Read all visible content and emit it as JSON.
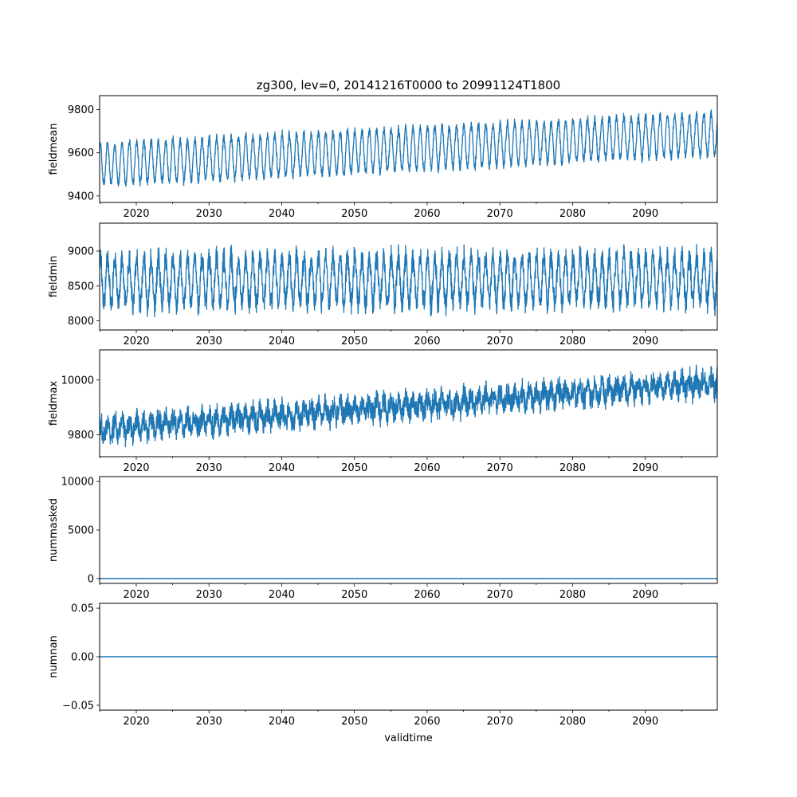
{
  "figure": {
    "title": "zg300, lev=0, 20141216T0000 to 20991124T1800",
    "xlabel": "validtime",
    "line_color": "#1f77b4"
  },
  "chart_data": [
    {
      "type": "line",
      "ylabel": "fieldmean",
      "xlim": [
        2014.96,
        2099.9
      ],
      "ylim": [
        9370,
        9865
      ],
      "x_ticks": [
        "2020",
        "2030",
        "2040",
        "2050",
        "2060",
        "2070",
        "2080",
        "2090"
      ],
      "y_ticks": [
        9400,
        9600,
        9800
      ],
      "series": [
        {
          "x_start": 2014.96,
          "x_end": 2099.9,
          "base_start": 9545,
          "base_end": 9690,
          "seasonal_amplitude": 95,
          "noise": 18,
          "min": 9385,
          "max": 9840
        }
      ]
    },
    {
      "type": "line",
      "ylabel": "fieldmin",
      "xlim": [
        2014.96,
        2099.9
      ],
      "ylim": [
        7870,
        9400
      ],
      "x_ticks": [
        "2020",
        "2030",
        "2040",
        "2050",
        "2060",
        "2070",
        "2080",
        "2090"
      ],
      "y_ticks": [
        8000,
        8500,
        9000
      ],
      "series": [
        {
          "x_start": 2014.96,
          "x_end": 2099.9,
          "base_start": 8560,
          "base_end": 8600,
          "seasonal_amplitude": 330,
          "noise": 140,
          "min": 7950,
          "max": 9330
        }
      ]
    },
    {
      "type": "line",
      "ylabel": "fieldmax",
      "xlim": [
        2014.96,
        2099.9
      ],
      "ylim": [
        9720,
        10110
      ],
      "x_ticks": [
        "2020",
        "2030",
        "2040",
        "2050",
        "2060",
        "2070",
        "2080",
        "2090"
      ],
      "y_ticks": [
        9800,
        10000
      ],
      "series": [
        {
          "x_start": 2014.96,
          "x_end": 2099.9,
          "base_start": 9820,
          "base_end": 9990,
          "seasonal_amplitude": 25,
          "noise": 35,
          "min": 9730,
          "max": 10100
        }
      ]
    },
    {
      "type": "line",
      "ylabel": "nummasked",
      "xlim": [
        2014.96,
        2099.9
      ],
      "ylim": [
        -500,
        10500
      ],
      "x_ticks": [
        "2020",
        "2030",
        "2040",
        "2050",
        "2060",
        "2070",
        "2080",
        "2090"
      ],
      "y_ticks": [
        0,
        5000,
        10000
      ],
      "series": [
        {
          "x_start": 2014.96,
          "x_end": 2099.9,
          "constant": 0
        }
      ]
    },
    {
      "type": "line",
      "ylabel": "numnan",
      "xlim": [
        2014.96,
        2099.9
      ],
      "ylim": [
        -0.055,
        0.055
      ],
      "x_ticks": [
        "2020",
        "2030",
        "2040",
        "2050",
        "2060",
        "2070",
        "2080",
        "2090"
      ],
      "y_ticks": [
        -0.05,
        0.0,
        0.05
      ],
      "y_tick_labels": [
        "−0.05",
        "0.00",
        "0.05"
      ],
      "series": [
        {
          "x_start": 2014.96,
          "x_end": 2099.9,
          "constant": 0
        }
      ]
    }
  ]
}
